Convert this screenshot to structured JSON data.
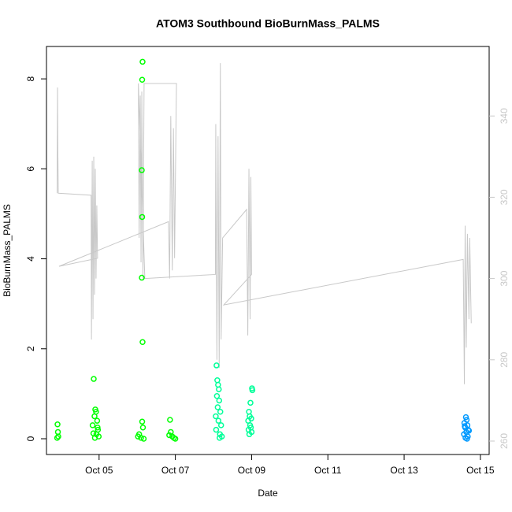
{
  "chart_data": {
    "type": "scatter",
    "title": "ATOM3 Southbound BioBurnMass_PALMS",
    "x_label": "Date",
    "y_label": "BioBurnMass_PALMS",
    "xlim": [
      3.62,
      15.23
    ],
    "xticks": [
      {
        "value": 5,
        "label": "Oct 05"
      },
      {
        "value": 7,
        "label": "Oct 07"
      },
      {
        "value": 9,
        "label": "Oct 09"
      },
      {
        "value": 11,
        "label": "Oct 11"
      },
      {
        "value": 13,
        "label": "Oct 13"
      },
      {
        "value": 15,
        "label": "Oct 15"
      }
    ],
    "ylim": [
      -0.35,
      8.72
    ],
    "yticks": [
      0,
      2,
      4,
      6,
      8
    ],
    "y2lim": [
      256.7,
      357.1
    ],
    "y2ticks": [
      260,
      280,
      300,
      320,
      340
    ],
    "y2_color": "#c8c8c8",
    "series": [
      {
        "color": "#00ff00",
        "x": [
          3.91,
          3.92,
          3.9,
          3.93,
          4.86,
          4.9,
          4.92,
          4.88,
          4.95,
          4.83,
          4.97,
          4.85,
          4.99,
          4.89,
          4.93,
          4.96,
          6.14,
          6.13,
          6.12,
          6.13,
          6.12,
          6.14,
          6.13,
          6.15,
          6.05,
          6.1,
          6.02,
          6.17,
          6.86,
          6.88,
          6.92,
          6.96,
          7.0,
          6.84
        ],
        "values": [
          0.32,
          0.15,
          0.02,
          0.05,
          1.33,
          0.65,
          0.6,
          0.5,
          0.4,
          0.3,
          0.2,
          0.12,
          0.05,
          0.02,
          0.1,
          0.25,
          8.38,
          7.98,
          5.97,
          4.93,
          3.58,
          2.15,
          0.38,
          0.25,
          0.1,
          0.02,
          0.05,
          0.0,
          0.42,
          0.15,
          0.05,
          0.02,
          0.0,
          0.08
        ]
      },
      {
        "color": "#00ff99",
        "x": [
          8.08,
          8.1,
          8.12,
          8.14,
          8.09,
          8.15,
          8.11,
          8.18,
          8.06,
          8.13,
          8.2,
          8.07,
          8.17,
          8.22,
          8.16,
          9.01,
          9.02,
          8.97,
          8.93,
          8.95,
          8.99,
          8.91,
          8.96,
          8.98,
          8.92,
          9.0,
          8.94
        ],
        "values": [
          1.63,
          1.3,
          1.2,
          1.1,
          0.95,
          0.85,
          0.7,
          0.6,
          0.5,
          0.4,
          0.3,
          0.2,
          0.1,
          0.05,
          0.02,
          1.12,
          1.08,
          0.8,
          0.6,
          0.5,
          0.45,
          0.4,
          0.3,
          0.25,
          0.2,
          0.15,
          0.1
        ]
      },
      {
        "color": "#0099ff",
        "x": [
          14.62,
          14.64,
          14.58,
          14.66,
          14.6,
          14.68,
          14.63,
          14.57,
          14.67,
          14.61,
          14.65,
          14.59,
          14.7
        ],
        "values": [
          0.48,
          0.42,
          0.35,
          0.3,
          0.25,
          0.2,
          0.15,
          0.1,
          0.05,
          0.02,
          0.0,
          0.28,
          0.18
        ]
      },
      {
        "color": "#c8c8c8",
        "axis": "y2",
        "type": "line",
        "x": [
          3.9,
          3.91,
          3.92,
          3.93,
          4.79,
          4.8,
          4.82,
          4.84,
          4.86,
          4.88,
          4.9,
          4.92,
          4.94,
          4.96,
          3.95,
          6.82,
          6.85,
          6.88,
          6.92,
          6.95,
          6.98,
          7.02,
          7.03,
          6.18,
          6.15,
          6.12,
          6.1,
          6.08,
          6.05,
          6.03,
          6.2,
          8.05,
          8.06,
          8.09,
          8.12,
          8.15,
          8.18,
          8.2,
          8.24,
          8.87,
          8.9,
          8.93,
          8.96,
          8.98,
          9.0,
          8.27,
          14.55,
          14.58,
          14.6,
          14.63,
          14.66,
          14.7,
          14.72,
          14.76
        ],
        "values": [
          321,
          347,
          330,
          321,
          320.5,
          285,
          329,
          290,
          330,
          296,
          327,
          300,
          318,
          305,
          303,
          314,
          300,
          340,
          302,
          337,
          305,
          341,
          348,
          348,
          300,
          346,
          304,
          345,
          310,
          348,
          300,
          301,
          338,
          280,
          335,
          278,
          353,
          285,
          310,
          317,
          286,
          327,
          290,
          325,
          301,
          293.5,
          304.7,
          274,
          313,
          283,
          311,
          290,
          310,
          289
        ]
      }
    ]
  }
}
